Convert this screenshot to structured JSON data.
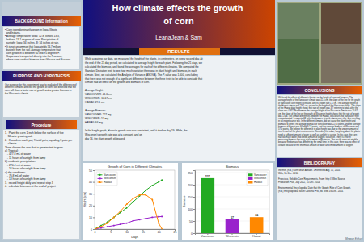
{
  "title": "How climate effects the growth\nof corn",
  "subtitle": "LeanaJean & Sam",
  "annotations": [
    "BACKGROUND Information",
    "• Corn is predominantly grown in Iowa, Illinois,\n  and Indiana.\n• Average temperature: Iowa: 12.8, Illinois: 13.3,\n  Indiana: 13.1 degrees of corn. Precipitation of\n  sunlight: Iowa: 34 inches, Ill: 34 inches of rain.\n• It is not uncommon that Iowa yields 56.7 million\n  bushels from the soil. Average temperature that\n  corn grows in is between 60 and 95 degrees F.\n• Sugars are transported directly into the Fructose,\n  where corn conduct biomass from Glucose and Sucrose.",
    "PURPOSE AND HYPOTHESIS",
    "Our purpose for this experiment was to evaluate if the difference of\ndifferent climates affected the growth of corn. We believed that the\ncorn will show a faster rate of growth and a greater biomass in\nthe Wisconsin climate.",
    "Procedure",
    "1.  Plant the corn 1 inch below the surface of the\n    Miracle growing soil.\n2.  3 seeds in each pot, 9 total pots, equaling 3 pots per\n    climate.\nThen choose the one that is germinated to grow.\na) Tropical:\n   - 427.8 mL of water\n   - 11 hours of sunlight from lamp\nb) moderate precipitation:\n   - 270.4 mL of water\n   - 16 hours of sunlight from lamp\nc) dry conditions:\n   - 70.8 mL of water\n   - 13 hours of sunlight from lamp\n3.  record height daily and repeat step 3\n4.  calculate biomass at the end of project",
    "RESULTS",
    "While acquiring our data, we measured the height of the plants, in centimeters, on every second day. At\nthe end of the 21 day period, we calculated to average height for each plant. Following the 21 days, we\ncalculated the biomass, and found the averages for each of the different climates. We computed the\nStandard Deviation test, to see how much variation there was in plant height and biomass, in each\nclimate. Next, we calculated the Analysis of Variance (ANOVA). The P-value was 1.000, concluding\nthat there was not enough of a significant difference between the three tests to be able to conclude that\nclimate had an effect on the growth and biomass of corn.\n\nAverage Height:\nVANCOUVER: 41.6 cm\nWISCONSIN: 10.67 cm\nHAWAII: 29.1 cm\n\nAverage Biomass:\nVANCOUVER: 227 mg\nWISCONSIN: 57 mg\nHAWAII: 66 mg\n\nIn the height graph, Hawaii's growth rate was consistent, until it died on day 19. While, the\nWisconsin's growth rate was at a constant, and on\nday 16, the plant growth plateaued.",
    "CONCLUSIONS",
    "We found the effects of different climates on the height of corn and biomass. The average height of the Vancouver climate was 41.6 cm, the slope of the line for the graph of Vancouver corn height increased, and its growth rate 1.1 cm. The average height of the Hawaii climate was 29.1 cm, second to the height of the Vancouver plants. The slope of the Hawaii daily height shows that rate of growth was 3.7 referring to totals after the slope was 4.977. Furthermore the average height of the Wisconsin climate was 10.67 cm, the slope of the line on the graph of Wisconsin height shows that the rate of growth was 1.6/d. The climate differences between the Hawaii, Wisconsin and Vancouver then comprehended. I computed P-value for biomass at each climate was also, thus resulting in no insignificance test. In the different climates, did not cause the plant height and biomass to differ. The average biomass of Vancouver was 227.3 points, and the average biomass of Hawaii was 66 with 9.17 points, and the average biomass of Wisconsin was 57.0 points. We believe the difference in plant height was due to the uneven amount of time in each of the plant environments. Exceeding this value, I anything about the plants need a sufficient amount of water as well as sunlight to survive. In this case, the corn had too much water and limited amount of oxygen, to survive. There is error in measuring biomass because of placement inefficiencies. The results were not reliable because the biomass has different by the small time. In this case, there was no effect of climate because of the enormous amount of water and limited amount of oxygen.",
    "BIBLIOGRAPHY",
    "Internet, (n.d.) Corn Grain Altitude. 1 Retrieved Aug. 12, 2014.\nWeb, 1st Dec. 2014.\n\nFrancisco, Reliable Corn Requirements. From: http://. Web Source.\nProduction Plus, July 2012, 15 Dec. 2014.\n\nEnvironmental Encyclopedia, Date that the Growth Rate of Corn Growth.\n(n.d.) Encyclopedia, South Carolina: Pro, ed. Web 1st Dec. 2014.",
    "Meggan Eishart"
  ],
  "chart_data": [
    {
      "type": "line",
      "title": "Growth of Corn in Different Climates",
      "xlabel": "Days",
      "ylabel": "Height (cm)",
      "x": [
        0,
        2,
        4,
        6,
        8,
        10,
        12,
        14,
        16,
        18,
        20,
        21
      ],
      "series": [
        {
          "name": "Vancouver",
          "color": "#22aa22",
          "marker": "circle",
          "values": [
            0,
            3,
            6,
            10,
            14,
            18,
            23,
            28,
            33,
            37,
            40,
            41.6
          ]
        },
        {
          "name": "Wisconsin",
          "color": "#9922cc",
          "marker": "square",
          "values": [
            0,
            1,
            2,
            3,
            4,
            5,
            7,
            8,
            9,
            10,
            10.5,
            10.67
          ]
        },
        {
          "name": "Hawaii",
          "color": "#ff8800",
          "marker": "triangle",
          "values": [
            0,
            2,
            5,
            10,
            15,
            21,
            26,
            29,
            29,
            25,
            5,
            0
          ]
        }
      ],
      "xlim": [
        0,
        25
      ],
      "xticks": [
        0,
        5,
        10,
        15,
        20,
        25
      ],
      "ylim": [
        0,
        50
      ],
      "yticks": [
        0,
        10,
        20,
        30,
        40,
        50
      ],
      "legend": "upper left",
      "grid": false
    },
    {
      "type": "bar",
      "title": "Biomass",
      "ylabel": "Biomass",
      "categories": [
        "Vancouver",
        "Wisconsin",
        "Hawaii"
      ],
      "values": [
        227,
        57,
        66
      ],
      "colors": [
        "#22aa22",
        "#9922cc",
        "#ff8800"
      ],
      "ylim": [
        0,
        260
      ],
      "yticks": [
        0,
        50,
        100,
        150,
        200,
        250
      ],
      "grid": true,
      "legend": "upper right",
      "data_labels": true
    }
  ]
}
